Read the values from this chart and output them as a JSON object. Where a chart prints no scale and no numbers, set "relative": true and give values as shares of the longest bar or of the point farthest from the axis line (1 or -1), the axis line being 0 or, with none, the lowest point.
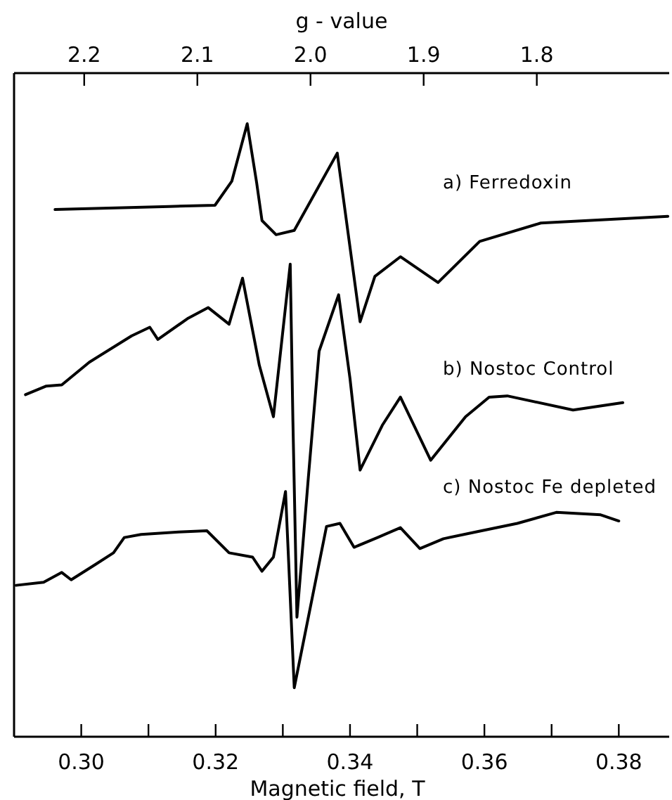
{
  "chart_data": {
    "type": "line",
    "relative": true,
    "xlabel": "Magnetic field, T",
    "x2label": "g - value",
    "xlim": [
      0.29,
      0.3875
    ],
    "xticks": [
      {
        "value": 0.3,
        "label": "0.30"
      },
      {
        "value": 0.31,
        "label": null
      },
      {
        "value": 0.32,
        "label": "0.32"
      },
      {
        "value": 0.33,
        "label": null
      },
      {
        "value": 0.34,
        "label": "0.34"
      },
      {
        "value": 0.35,
        "label": null
      },
      {
        "value": 0.36,
        "label": "0.36"
      },
      {
        "value": 0.37,
        "label": null
      },
      {
        "value": 0.38,
        "label": "0.38"
      }
    ],
    "x2lim": [
      2.262,
      1.683
    ],
    "x2ticks": [
      2.2,
      2.1,
      {
        "value": 2,
        "label": "2.0"
      },
      1.9,
      1.8
    ],
    "tick_labels": "x",
    "grid": false,
    "marker": "none",
    "line_style": "solid",
    "series": [
      {
        "name": "a) Ferredoxin",
        "color": "#000000",
        "x": [
          0.2961,
          0.3131,
          0.3199,
          0.3224,
          0.3247,
          0.3261,
          0.3269,
          0.329,
          0.3317,
          0.3381,
          0.3415,
          0.3437,
          0.3475,
          0.3531,
          0.3593,
          0.3684,
          0.3873
        ],
        "values": [
          0.86,
          0.865,
          0.867,
          0.906,
          1.0,
          0.904,
          0.842,
          0.819,
          0.826,
          0.952,
          0.677,
          0.751,
          0.783,
          0.741,
          0.808,
          0.838,
          0.849
        ]
      },
      {
        "name": "b) Nostoc Control",
        "color": "#000000",
        "x": [
          0.2917,
          0.2948,
          0.2971,
          0.3012,
          0.3075,
          0.3102,
          0.3114,
          0.3158,
          0.3189,
          0.322,
          0.324,
          0.3265,
          0.3286,
          0.3311,
          0.3315,
          0.3321,
          0.3338,
          0.3354,
          0.3383,
          0.34,
          0.3415,
          0.3448,
          0.3475,
          0.352,
          0.3572,
          0.3607,
          0.3634,
          0.3732,
          0.3806
        ],
        "values": [
          0.558,
          0.572,
          0.574,
          0.611,
          0.654,
          0.668,
          0.648,
          0.682,
          0.7,
          0.673,
          0.748,
          0.606,
          0.522,
          0.771,
          0.515,
          0.195,
          0.423,
          0.629,
          0.721,
          0.584,
          0.435,
          0.508,
          0.554,
          0.451,
          0.522,
          0.554,
          0.556,
          0.533,
          0.545
        ]
      },
      {
        "name": "c) Nostoc Fe depleted",
        "color": "#000000",
        "x": [
          0.2903,
          0.2944,
          0.2971,
          0.2985,
          0.3021,
          0.3048,
          0.3064,
          0.3089,
          0.3145,
          0.3187,
          0.322,
          0.3255,
          0.3269,
          0.3286,
          0.3304,
          0.3317,
          0.3365,
          0.3385,
          0.3406,
          0.3441,
          0.3475,
          0.3504,
          0.3539,
          0.3587,
          0.3649,
          0.3707,
          0.3773,
          0.38
        ],
        "values": [
          0.247,
          0.252,
          0.268,
          0.256,
          0.281,
          0.3,
          0.325,
          0.33,
          0.334,
          0.336,
          0.3,
          0.293,
          0.27,
          0.293,
          0.4,
          0.08,
          0.343,
          0.348,
          0.309,
          0.325,
          0.341,
          0.307,
          0.323,
          0.334,
          0.348,
          0.366,
          0.362,
          0.352
        ]
      }
    ]
  }
}
